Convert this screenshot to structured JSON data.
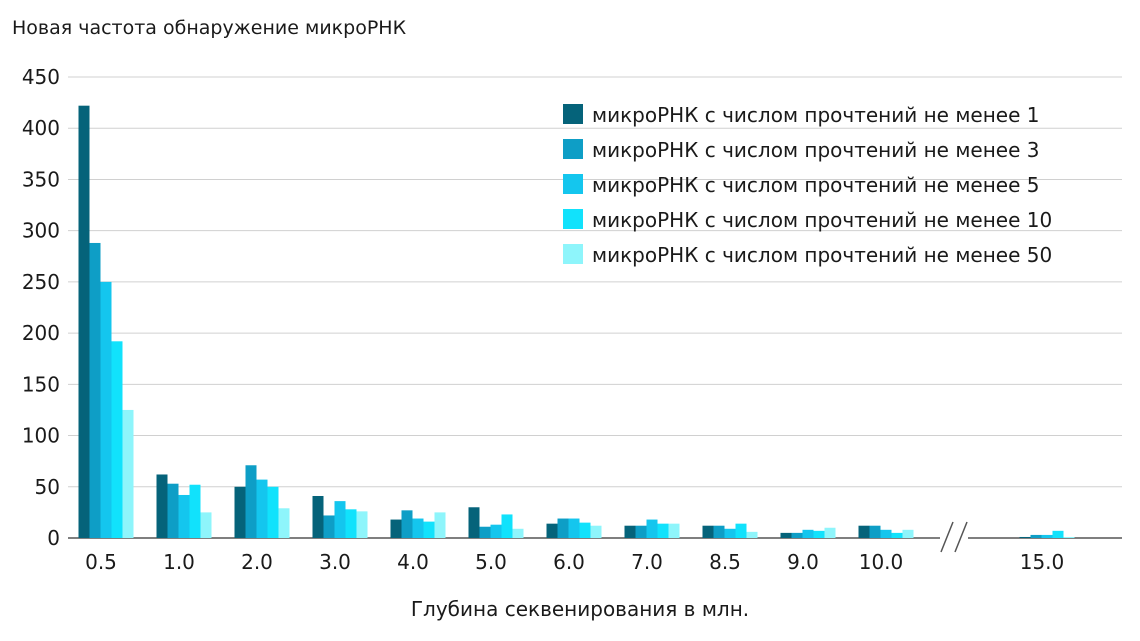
{
  "chart_data": {
    "type": "bar",
    "title": "Новая частота обнаружение микроРНК",
    "xlabel": "Глубина секвенирования в млн.",
    "ylabel": "",
    "ylim": [
      0,
      450
    ],
    "yticks": [
      "0",
      "50",
      "100",
      "150",
      "200",
      "250",
      "300",
      "350",
      "400",
      "450"
    ],
    "grid": true,
    "legend_position": "top-right",
    "axis_break_between": [
      "10.0",
      "15.0"
    ],
    "categories": [
      "0.5",
      "1.0",
      "2.0",
      "3.0",
      "4.0",
      "5.0",
      "6.0",
      "7.0",
      "8.5",
      "9.0",
      "10.0",
      "15.0"
    ],
    "series": [
      {
        "name": "микроРНК с числом прочтений не менее 1",
        "color": "#05637a",
        "values": [
          422,
          62,
          50,
          41,
          18,
          30,
          14,
          12,
          12,
          5,
          12,
          1
        ]
      },
      {
        "name": "микроРНК с числом прочтений не менее 3",
        "color": "#0e9ec6",
        "values": [
          288,
          53,
          71,
          22,
          27,
          11,
          19,
          12,
          12,
          5,
          12,
          3
        ]
      },
      {
        "name": "микроРНК с числом прочтений не менее 5",
        "color": "#14c6ee",
        "values": [
          250,
          42,
          57,
          36,
          19,
          13,
          19,
          18,
          9,
          8,
          8,
          3
        ]
      },
      {
        "name": "микроРНК с числом прочтений не менее 10",
        "color": "#11e2fc",
        "values": [
          192,
          52,
          50,
          28,
          16,
          23,
          15,
          14,
          14,
          7,
          5,
          7
        ]
      },
      {
        "name": "микроРНК с числом прочтений не менее 50",
        "color": "#8ef5fb",
        "values": [
          125,
          25,
          29,
          26,
          25,
          9,
          12,
          14,
          6,
          10,
          8,
          1
        ]
      }
    ]
  }
}
